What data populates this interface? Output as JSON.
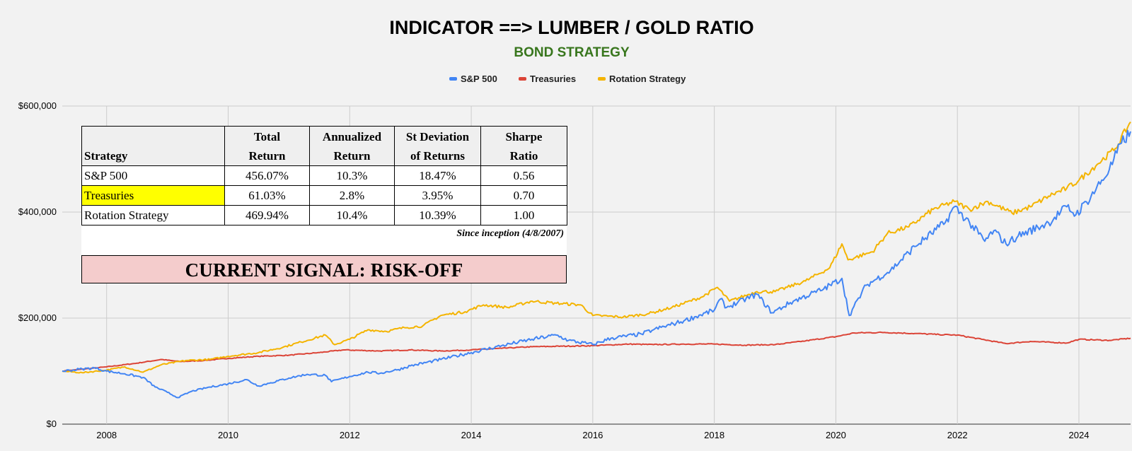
{
  "chart_data": {
    "type": "line",
    "title": "INDICATOR ==> LUMBER / GOLD RATIO",
    "subtitle": "BOND STRATEGY",
    "xlabel": "",
    "ylabel": "",
    "xlim": [
      2007.27,
      2024.85
    ],
    "ylim": [
      0,
      600000
    ],
    "y_ticks": [
      0,
      200000,
      400000,
      600000
    ],
    "y_tick_labels": [
      "$0",
      "$200,000",
      "$400,000",
      "$600,000"
    ],
    "x_ticks": [
      2008,
      2010,
      2012,
      2014,
      2016,
      2018,
      2020,
      2022,
      2024
    ],
    "x_tick_labels": [
      "2008",
      "2010",
      "2012",
      "2014",
      "2016",
      "2018",
      "2020",
      "2022",
      "2024"
    ],
    "grid": true,
    "legend_position": "top-center",
    "series": [
      {
        "name": "S&P 500",
        "color": "#4285f4",
        "points": [
          [
            2007.27,
            100000
          ],
          [
            2007.6,
            104000
          ],
          [
            2007.8,
            106000
          ],
          [
            2008.0,
            100000
          ],
          [
            2008.3,
            95000
          ],
          [
            2008.6,
            88000
          ],
          [
            2008.8,
            70000
          ],
          [
            2009.0,
            60000
          ],
          [
            2009.17,
            50000
          ],
          [
            2009.4,
            62000
          ],
          [
            2009.7,
            70000
          ],
          [
            2010.0,
            76000
          ],
          [
            2010.3,
            84000
          ],
          [
            2010.5,
            72000
          ],
          [
            2010.7,
            78000
          ],
          [
            2011.0,
            87000
          ],
          [
            2011.3,
            94000
          ],
          [
            2011.6,
            92000
          ],
          [
            2011.7,
            80000
          ],
          [
            2012.0,
            90000
          ],
          [
            2012.3,
            98000
          ],
          [
            2012.5,
            96000
          ],
          [
            2012.8,
            103000
          ],
          [
            2013.0,
            110000
          ],
          [
            2013.5,
            122000
          ],
          [
            2014.0,
            135000
          ],
          [
            2014.5,
            148000
          ],
          [
            2015.0,
            160000
          ],
          [
            2015.4,
            168000
          ],
          [
            2015.6,
            158000
          ],
          [
            2016.0,
            150000
          ],
          [
            2016.3,
            162000
          ],
          [
            2016.8,
            170000
          ],
          [
            2017.0,
            178000
          ],
          [
            2017.5,
            195000
          ],
          [
            2018.0,
            215000
          ],
          [
            2018.1,
            236000
          ],
          [
            2018.2,
            220000
          ],
          [
            2018.7,
            245000
          ],
          [
            2018.95,
            210000
          ],
          [
            2019.3,
            232000
          ],
          [
            2019.8,
            255000
          ],
          [
            2020.1,
            275000
          ],
          [
            2020.22,
            205000
          ],
          [
            2020.5,
            262000
          ],
          [
            2020.9,
            290000
          ],
          [
            2021.3,
            335000
          ],
          [
            2021.8,
            380000
          ],
          [
            2021.95,
            410000
          ],
          [
            2022.2,
            380000
          ],
          [
            2022.45,
            345000
          ],
          [
            2022.6,
            365000
          ],
          [
            2022.8,
            340000
          ],
          [
            2023.0,
            355000
          ],
          [
            2023.5,
            380000
          ],
          [
            2023.8,
            410000
          ],
          [
            2023.95,
            395000
          ],
          [
            2024.2,
            430000
          ],
          [
            2024.5,
            480000
          ],
          [
            2024.7,
            530000
          ],
          [
            2024.85,
            552000
          ]
        ]
      },
      {
        "name": "Treasuries",
        "color": "#db4437",
        "points": [
          [
            2007.27,
            100000
          ],
          [
            2008.0,
            108000
          ],
          [
            2008.5,
            115000
          ],
          [
            2008.9,
            122000
          ],
          [
            2009.2,
            118000
          ],
          [
            2009.6,
            120000
          ],
          [
            2010.0,
            124000
          ],
          [
            2010.5,
            128000
          ],
          [
            2011.0,
            130000
          ],
          [
            2011.5,
            135000
          ],
          [
            2011.9,
            140000
          ],
          [
            2012.5,
            138000
          ],
          [
            2013.0,
            140000
          ],
          [
            2013.5,
            138000
          ],
          [
            2014.0,
            140000
          ],
          [
            2014.5,
            143000
          ],
          [
            2015.0,
            146000
          ],
          [
            2015.5,
            147000
          ],
          [
            2016.0,
            148000
          ],
          [
            2016.6,
            151000
          ],
          [
            2017.0,
            150000
          ],
          [
            2017.5,
            151000
          ],
          [
            2018.0,
            151000
          ],
          [
            2018.5,
            149000
          ],
          [
            2019.0,
            150000
          ],
          [
            2019.5,
            157000
          ],
          [
            2020.0,
            165000
          ],
          [
            2020.3,
            172000
          ],
          [
            2020.8,
            173000
          ],
          [
            2021.3,
            171000
          ],
          [
            2021.7,
            169000
          ],
          [
            2022.0,
            168000
          ],
          [
            2022.4,
            160000
          ],
          [
            2022.8,
            152000
          ],
          [
            2023.2,
            156000
          ],
          [
            2023.8,
            153000
          ],
          [
            2024.0,
            160000
          ],
          [
            2024.5,
            158000
          ],
          [
            2024.85,
            162000
          ]
        ]
      },
      {
        "name": "Rotation Strategy",
        "color": "#f4b400",
        "points": [
          [
            2007.27,
            100000
          ],
          [
            2007.6,
            97000
          ],
          [
            2008.0,
            102000
          ],
          [
            2008.3,
            108000
          ],
          [
            2008.6,
            98000
          ],
          [
            2008.9,
            112000
          ],
          [
            2009.3,
            120000
          ],
          [
            2009.7,
            122000
          ],
          [
            2010.0,
            128000
          ],
          [
            2010.5,
            135000
          ],
          [
            2010.9,
            145000
          ],
          [
            2011.2,
            155000
          ],
          [
            2011.6,
            168000
          ],
          [
            2011.75,
            150000
          ],
          [
            2012.0,
            160000
          ],
          [
            2012.3,
            178000
          ],
          [
            2012.6,
            175000
          ],
          [
            2012.9,
            182000
          ],
          [
            2013.2,
            185000
          ],
          [
            2013.5,
            205000
          ],
          [
            2013.9,
            212000
          ],
          [
            2014.2,
            225000
          ],
          [
            2014.6,
            220000
          ],
          [
            2015.0,
            232000
          ],
          [
            2015.4,
            228000
          ],
          [
            2015.8,
            225000
          ],
          [
            2016.0,
            205000
          ],
          [
            2016.5,
            202000
          ],
          [
            2016.9,
            208000
          ],
          [
            2017.3,
            220000
          ],
          [
            2017.8,
            240000
          ],
          [
            2018.05,
            258000
          ],
          [
            2018.25,
            232000
          ],
          [
            2018.7,
            250000
          ],
          [
            2019.0,
            250000
          ],
          [
            2019.5,
            270000
          ],
          [
            2019.9,
            295000
          ],
          [
            2020.1,
            340000
          ],
          [
            2020.2,
            310000
          ],
          [
            2020.6,
            325000
          ],
          [
            2020.85,
            360000
          ],
          [
            2021.2,
            372000
          ],
          [
            2021.6,
            405000
          ],
          [
            2021.95,
            420000
          ],
          [
            2022.2,
            405000
          ],
          [
            2022.5,
            420000
          ],
          [
            2022.9,
            398000
          ],
          [
            2023.2,
            410000
          ],
          [
            2023.5,
            430000
          ],
          [
            2023.8,
            445000
          ],
          [
            2024.0,
            460000
          ],
          [
            2024.3,
            490000
          ],
          [
            2024.6,
            520000
          ],
          [
            2024.85,
            570000
          ]
        ]
      }
    ]
  },
  "stats_table": {
    "headers": [
      {
        "line1": "",
        "line2": "Strategy"
      },
      {
        "line1": "Total",
        "line2": "Return"
      },
      {
        "line1": "Annualized",
        "line2": "Return"
      },
      {
        "line1": "St Deviation",
        "line2": "of Returns"
      },
      {
        "line1": "Sharpe",
        "line2": "Ratio"
      }
    ],
    "rows": [
      {
        "strategy": "S&P 500",
        "total_return": "456.07%",
        "annualized_return": "10.3%",
        "std_dev": "18.47%",
        "sharpe": "0.56"
      },
      {
        "strategy": "Treasuries",
        "total_return": "61.03%",
        "annualized_return": "2.8%",
        "std_dev": "3.95%",
        "sharpe": "0.70"
      },
      {
        "strategy": "Rotation Strategy",
        "total_return": "469.94%",
        "annualized_return": "10.4%",
        "std_dev": "10.39%",
        "sharpe": "1.00"
      }
    ],
    "highlight_color": "#ffff00",
    "since_note": "Since inception (4/8/2007)",
    "signal_text": "CURRENT SIGNAL: RISK-OFF",
    "signal_bg": "#f4cccc"
  },
  "colors": {
    "subtitle": "#38761d",
    "background": "#f2f2f2",
    "grid": "#cccccc"
  }
}
